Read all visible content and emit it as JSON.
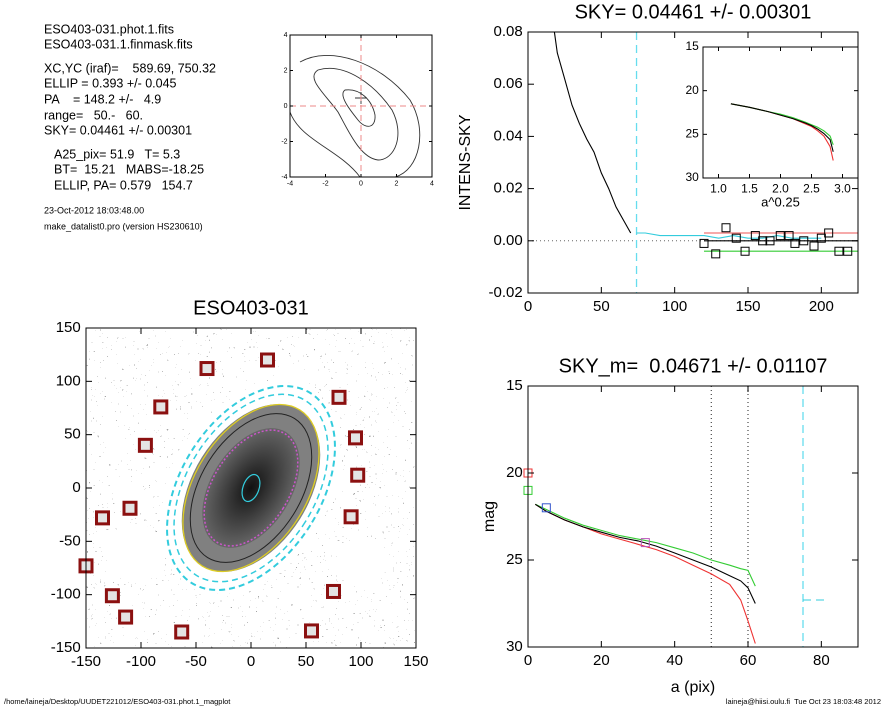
{
  "info": {
    "lines": [
      "ESO403-031.phot.1.fits",
      "ESO403-031.1.finmask.fits",
      "XC,YC (iraf)=    589.69, 750.32",
      "ELLIP = 0.393 +/- 0.045",
      "PA    = 148.2 +/-   4.9",
      "range=   50.-   60.",
      "SKY= 0.04461 +/- 0.00301",
      "A25_pix= 51.9   T= 5.3",
      "BT=  15.21   MABS=-18.25",
      "ELLIP, PA= 0.579   154.7"
    ],
    "date": "23-Oct-2012 18:03:48.00",
    "program": "make_datalist0.pro (version HS230610)"
  },
  "footer": {
    "left": "/home/laineja/Desktop/UUDET221012/ESO403-031.phot.1_magplot",
    "right": "laineja@hiisi.oulu.fi  Tue Oct 23 18:03:48 2012"
  },
  "chart_data": [
    {
      "type": "contour",
      "xlim": [
        -4,
        4
      ],
      "ylim": [
        -4,
        4
      ],
      "xticks": [
        -4,
        -2,
        0,
        2,
        4
      ],
      "yticks": [
        -4,
        -2,
        0,
        2,
        4
      ],
      "crosshair": true,
      "series": []
    },
    {
      "type": "line",
      "title": "SKY= 0.04461 +/- 0.00301",
      "ylabel": "INTENS-SKY",
      "xlim": [
        0,
        225
      ],
      "ylim": [
        -0.02,
        0.08
      ],
      "xticks": [
        0,
        50,
        100,
        150,
        200
      ],
      "yticks": [
        {
          "value": -0.02,
          "label": "-0.02"
        },
        {
          "value": 0,
          "label": "0.00"
        },
        0.02,
        0.04,
        0.06,
        0.08
      ],
      "zero_line": true,
      "vlines": [
        {
          "value": 74,
          "color": "#66ddee",
          "dash": "8,5"
        }
      ],
      "series": [
        {
          "color": "#000000",
          "x": [
            18,
            20,
            25,
            30,
            35,
            40,
            45,
            50,
            55,
            60,
            65,
            70
          ],
          "values": [
            0.08,
            0.072,
            0.062,
            0.052,
            0.045,
            0.039,
            0.034,
            0.026,
            0.02,
            0.013,
            0.008,
            0.003
          ]
        },
        {
          "color": "#33ccdd",
          "x": [
            74,
            80,
            90,
            100,
            110,
            120,
            130,
            140,
            150,
            160,
            170,
            180,
            190,
            200
          ],
          "values": [
            0.003,
            0.003,
            0.002,
            0.002,
            0.002,
            0.002,
            0.001,
            0.002,
            0.001,
            0.001,
            0.002,
            0.001,
            0.001,
            0.001
          ]
        },
        {
          "color": "#000000",
          "x": [
            120,
            225
          ],
          "values": [
            0,
            0
          ]
        },
        {
          "color": "#ee5555",
          "x": [
            120,
            225
          ],
          "values": [
            0.003,
            0.003
          ]
        },
        {
          "color": "#33cc33",
          "x": [
            120,
            225
          ],
          "values": [
            -0.004,
            -0.004
          ]
        },
        {
          "color": "#000000",
          "marker": "square",
          "x": [
            120,
            128,
            135,
            142,
            148,
            155,
            160,
            165,
            172,
            178,
            182,
            188,
            195,
            200,
            205,
            212,
            218
          ],
          "values": [
            -0.001,
            -0.005,
            0.005,
            0.001,
            -0.004,
            0.002,
            0,
            0,
            0.002,
            0.002,
            -0.001,
            0,
            -0.002,
            0.001,
            0.003,
            -0.004,
            -0.004
          ]
        }
      ]
    },
    {
      "type": "line",
      "xlabel": "a^0.25",
      "xlim": [
        0.75,
        3.25
      ],
      "ylim": [
        30,
        15
      ],
      "xticks": [
        {
          "value": 1,
          "label": "1.0"
        },
        1.5,
        {
          "value": 2,
          "label": "2.0"
        },
        2.5,
        {
          "value": 3,
          "label": "3.0"
        }
      ],
      "yticks": [
        15,
        20,
        25,
        30
      ],
      "series": [
        {
          "color": "#ee3333",
          "x": [
            1.2,
            1.5,
            1.8,
            2.0,
            2.2,
            2.4,
            2.5,
            2.6,
            2.7,
            2.8,
            2.85
          ],
          "values": [
            21.5,
            21.9,
            22.4,
            22.8,
            23.2,
            23.8,
            24.1,
            24.6,
            25.2,
            26.4,
            28.0
          ]
        },
        {
          "color": "#33cc33",
          "x": [
            1.2,
            1.5,
            1.8,
            2.0,
            2.2,
            2.4,
            2.5,
            2.6,
            2.7,
            2.8,
            2.85
          ],
          "values": [
            21.5,
            21.9,
            22.4,
            22.7,
            23.1,
            23.6,
            23.9,
            24.2,
            24.6,
            25.2,
            26.2
          ]
        },
        {
          "color": "#000000",
          "x": [
            1.2,
            1.5,
            1.8,
            2.0,
            2.2,
            2.4,
            2.5,
            2.6,
            2.7,
            2.8,
            2.85
          ],
          "values": [
            21.5,
            21.9,
            22.4,
            22.8,
            23.2,
            23.7,
            24.0,
            24.4,
            24.9,
            25.6,
            27.0
          ]
        }
      ]
    },
    {
      "type": "image",
      "title": "ESO403-031",
      "xlim": [
        -150,
        150
      ],
      "ylim": [
        -150,
        150
      ],
      "xticks": [
        -150,
        -100,
        -50,
        0,
        50,
        100,
        150
      ],
      "yticks": [
        -150,
        -100,
        -50,
        0,
        50,
        100,
        150
      ],
      "series": [
        {
          "color": "#8b1010",
          "marker": "square",
          "x": [
            15,
            -40,
            80,
            -82,
            95,
            -96,
            97,
            -135,
            -110,
            91,
            -150,
            -126,
            75,
            -114,
            55,
            -63
          ],
          "values": [
            120,
            112,
            85,
            76,
            47,
            40,
            12,
            -28,
            -19,
            -27,
            -73,
            -101,
            -97,
            -121,
            -134,
            -135
          ]
        }
      ]
    },
    {
      "type": "line",
      "title": "SKY_m=  0.04671 +/- 0.01107",
      "xlabel": "a (pix)",
      "ylabel": "mag",
      "xlim": [
        0,
        90
      ],
      "ylim": [
        30,
        15
      ],
      "xticks": [
        0,
        20,
        40,
        60,
        80
      ],
      "yticks": [
        15,
        20,
        25,
        30
      ],
      "vlines": [
        {
          "value": 50,
          "color": "#555555",
          "dash": "1,3"
        },
        {
          "value": 60,
          "color": "#555555",
          "dash": "1,3"
        },
        {
          "value": 75,
          "color": "#66ddee",
          "dash": "8,5"
        }
      ],
      "series": [
        {
          "color": "#ee3333",
          "x": [
            2,
            5,
            10,
            15,
            20,
            25,
            30,
            35,
            40,
            45,
            50,
            55,
            58,
            60,
            62
          ],
          "values": [
            21.8,
            22.2,
            22.7,
            23.1,
            23.5,
            23.8,
            24.1,
            24.4,
            24.8,
            25.3,
            25.8,
            26.4,
            27.3,
            28.5,
            29.8
          ]
        },
        {
          "color": "#33cc33",
          "x": [
            2,
            5,
            10,
            15,
            20,
            25,
            30,
            35,
            40,
            45,
            50,
            55,
            58,
            60,
            62
          ],
          "values": [
            21.8,
            22.1,
            22.6,
            23.0,
            23.3,
            23.6,
            23.8,
            24.0,
            24.3,
            24.6,
            25.0,
            25.3,
            25.5,
            25.6,
            26.5
          ]
        },
        {
          "color": "#000000",
          "x": [
            2,
            5,
            10,
            15,
            20,
            25,
            30,
            35,
            40,
            45,
            50,
            55,
            58,
            60,
            62
          ],
          "values": [
            21.8,
            22.2,
            22.7,
            23.1,
            23.4,
            23.7,
            23.9,
            24.2,
            24.6,
            25.0,
            25.4,
            25.9,
            26.2,
            26.6,
            27.5
          ]
        },
        {
          "color": "#33ccdd",
          "dash": "8,5",
          "x": [
            75,
            82
          ],
          "values": [
            27.3,
            27.3
          ]
        },
        {
          "color": "#ee3333",
          "marker": "square",
          "x": [
            0
          ],
          "values": [
            20
          ]
        },
        {
          "color": "#33cc33",
          "marker": "square",
          "x": [
            0
          ],
          "values": [
            21
          ]
        },
        {
          "color": "#3355cc",
          "marker": "square",
          "x": [
            5
          ],
          "values": [
            22
          ]
        },
        {
          "color": "#bb55bb",
          "marker": "square",
          "x": [
            32
          ],
          "values": [
            24
          ]
        }
      ]
    }
  ]
}
